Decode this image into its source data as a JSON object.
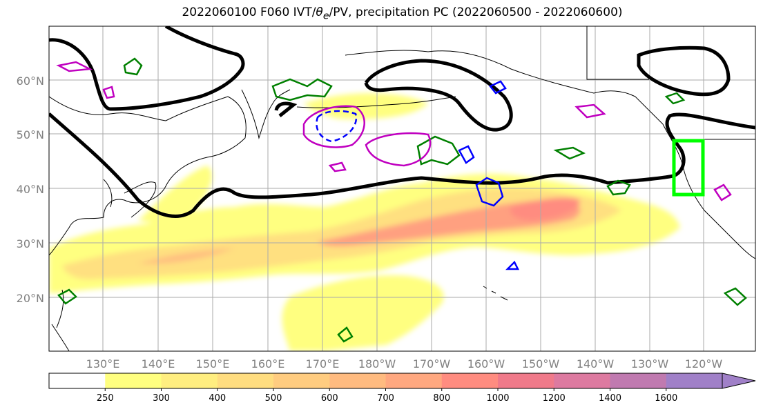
{
  "title": {
    "prefix": "2022060100 F060 IVT/",
    "theta": "θ",
    "theta_sub": "e",
    "suffix": "/PV, precipitation PC (2022060500 - 2022060600)"
  },
  "lat_labels": [
    "20°N",
    "30°N",
    "40°N",
    "50°N",
    "60°N"
  ],
  "lon_labels": [
    "130°E",
    "140°E",
    "150°E",
    "160°E",
    "170°E",
    "180°W",
    "170°W",
    "160°W",
    "150°W",
    "140°W",
    "130°W",
    "120°W"
  ],
  "colorbar": {
    "levels": [
      "250",
      "300",
      "400",
      "500",
      "600",
      "700",
      "800",
      "1000",
      "1200",
      "1400",
      "1600"
    ],
    "colors": [
      "#ffffff",
      "#ffff80",
      "#ffee80",
      "#ffdd80",
      "#ffcc80",
      "#ffbb80",
      "#ffa880",
      "#ff8c80",
      "#f07a8a",
      "#dd7aa0",
      "#c07ab0",
      "#a080c8"
    ],
    "extend": "max"
  },
  "colors": {
    "coast": "#000000",
    "jet_contour": "#000000",
    "pv_green": "#008000",
    "pv_blue": "#0000ff",
    "pv_magenta": "#c000c0",
    "target_box": "#00ff00",
    "grid": "#aaaaaa"
  },
  "legend_items": {
    "target_box_label": ""
  }
}
